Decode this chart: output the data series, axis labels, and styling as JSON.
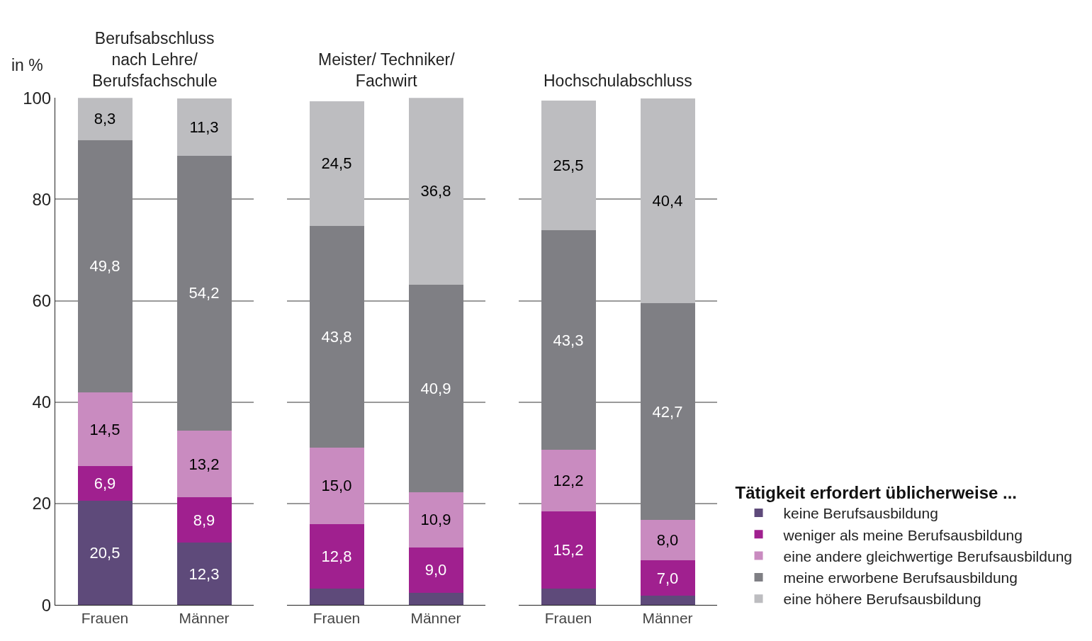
{
  "chart_data": [
    {
      "type": "bar",
      "stacked": true,
      "title": "Berufsabschluss\nnach Lehre/\nBerufsfachschule",
      "ylabel": "in %",
      "categories": [
        "Frauen",
        "Männer"
      ],
      "ylim": [
        0,
        100
      ],
      "yticks": [
        0,
        20,
        40,
        60,
        80,
        100
      ],
      "grid": "y",
      "series": [
        {
          "color": "#5e4a7a",
          "values": [
            20.5,
            12.3
          ],
          "value_labels": [
            "20,5",
            "12,3"
          ]
        },
        {
          "color": "#a0208f",
          "values": [
            6.9,
            8.9
          ],
          "value_labels": [
            "6,9",
            "8,9"
          ]
        },
        {
          "color": "#c98bc0",
          "values": [
            14.5,
            13.2
          ],
          "value_labels": [
            "14,5",
            "13,2"
          ]
        },
        {
          "color": "#7f7f84",
          "values": [
            49.8,
            54.2
          ],
          "value_labels": [
            "49,8",
            "54,2"
          ]
        },
        {
          "color": "#bdbdc0",
          "values": [
            8.3,
            11.3
          ],
          "value_labels": [
            "8,3",
            "11,3"
          ]
        }
      ]
    },
    {
      "type": "bar",
      "stacked": true,
      "title": "Meister/ Techniker/\nFachwirt",
      "categories": [
        "Frauen",
        "Männer"
      ],
      "ylim": [
        0,
        100
      ],
      "yticks": [
        0,
        20,
        40,
        60,
        80,
        100
      ],
      "grid": "y",
      "tick_labels": "x",
      "series": [
        {
          "color": "#5e4a7a",
          "values": [
            3.2,
            2.4
          ],
          "value_labels": [
            null,
            null
          ]
        },
        {
          "color": "#a0208f",
          "values": [
            12.8,
            9.0
          ],
          "value_labels": [
            "12,8",
            "9,0"
          ]
        },
        {
          "color": "#c98bc0",
          "values": [
            15.0,
            10.9
          ],
          "value_labels": [
            "15,0",
            "10,9"
          ]
        },
        {
          "color": "#7f7f84",
          "values": [
            43.8,
            40.9
          ],
          "value_labels": [
            "43,8",
            "40,9"
          ]
        },
        {
          "color": "#bdbdc0",
          "values": [
            24.5,
            36.8
          ],
          "value_labels": [
            "24,5",
            "36,8"
          ]
        }
      ]
    },
    {
      "type": "bar",
      "stacked": true,
      "title": "Hochschulabschluss",
      "categories": [
        "Frauen",
        "Männer"
      ],
      "ylim": [
        0,
        100
      ],
      "yticks": [
        0,
        20,
        40,
        60,
        80,
        100
      ],
      "grid": "y",
      "tick_labels": "x",
      "legend": "bottom right",
      "legend_title": "Tätigkeit erfordert üblicherweise ...",
      "series": [
        {
          "name": "keine Berufsausbildung",
          "color": "#5e4a7a",
          "values": [
            3.2,
            1.8
          ],
          "value_labels": [
            null,
            null
          ]
        },
        {
          "name": "weniger als meine Berufsausbildung",
          "color": "#a0208f",
          "values": [
            15.2,
            7.0
          ],
          "value_labels": [
            "15,2",
            "7,0"
          ]
        },
        {
          "name": "eine andere gleichwertige Berufsausbildung",
          "color": "#c98bc0",
          "values": [
            12.2,
            8.0
          ],
          "value_labels": [
            "12,2",
            "8,0"
          ]
        },
        {
          "name": "meine erworbene Berufsausbildung",
          "color": "#7f7f84",
          "values": [
            43.3,
            42.7
          ],
          "value_labels": [
            "43,3",
            "42,7"
          ]
        },
        {
          "name": "eine höhere Berufsausbildung",
          "color": "#bdbdc0",
          "values": [
            25.5,
            40.4
          ],
          "value_labels": [
            "25,5",
            "40,4"
          ]
        }
      ]
    }
  ]
}
